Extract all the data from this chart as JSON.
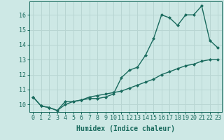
{
  "xlabel": "Humidex (Indice chaleur)",
  "x_values": [
    0,
    1,
    2,
    3,
    4,
    5,
    6,
    7,
    8,
    9,
    10,
    11,
    12,
    13,
    14,
    15,
    16,
    17,
    18,
    19,
    20,
    21,
    22,
    23
  ],
  "line1_y": [
    10.5,
    9.9,
    9.8,
    9.6,
    10.2,
    10.2,
    10.3,
    10.4,
    10.4,
    10.5,
    10.7,
    11.8,
    12.3,
    12.5,
    13.3,
    14.4,
    16.0,
    15.8,
    15.3,
    16.0,
    16.0,
    16.6,
    14.3,
    13.8
  ],
  "line2_y": [
    10.5,
    9.9,
    9.8,
    9.6,
    10.0,
    10.2,
    10.3,
    10.5,
    10.6,
    10.7,
    10.8,
    10.9,
    11.1,
    11.3,
    11.5,
    11.7,
    12.0,
    12.2,
    12.4,
    12.6,
    12.7,
    12.9,
    13.0,
    13.0
  ],
  "bg_color": "#cde8e5",
  "grid_color": "#b8d5d2",
  "line_color": "#1a6b5e",
  "ylim_min": 9.5,
  "ylim_max": 16.9,
  "xlim_min": -0.5,
  "xlim_max": 23.5,
  "yticks": [
    10,
    11,
    12,
    13,
    14,
    15,
    16
  ],
  "xticks": [
    0,
    1,
    2,
    3,
    4,
    5,
    6,
    7,
    8,
    9,
    10,
    11,
    12,
    13,
    14,
    15,
    16,
    17,
    18,
    19,
    20,
    21,
    22,
    23
  ],
  "marker": "D",
  "marker_size": 2.0,
  "line_width": 1.0,
  "font_size_label": 7,
  "font_size_tick": 6
}
